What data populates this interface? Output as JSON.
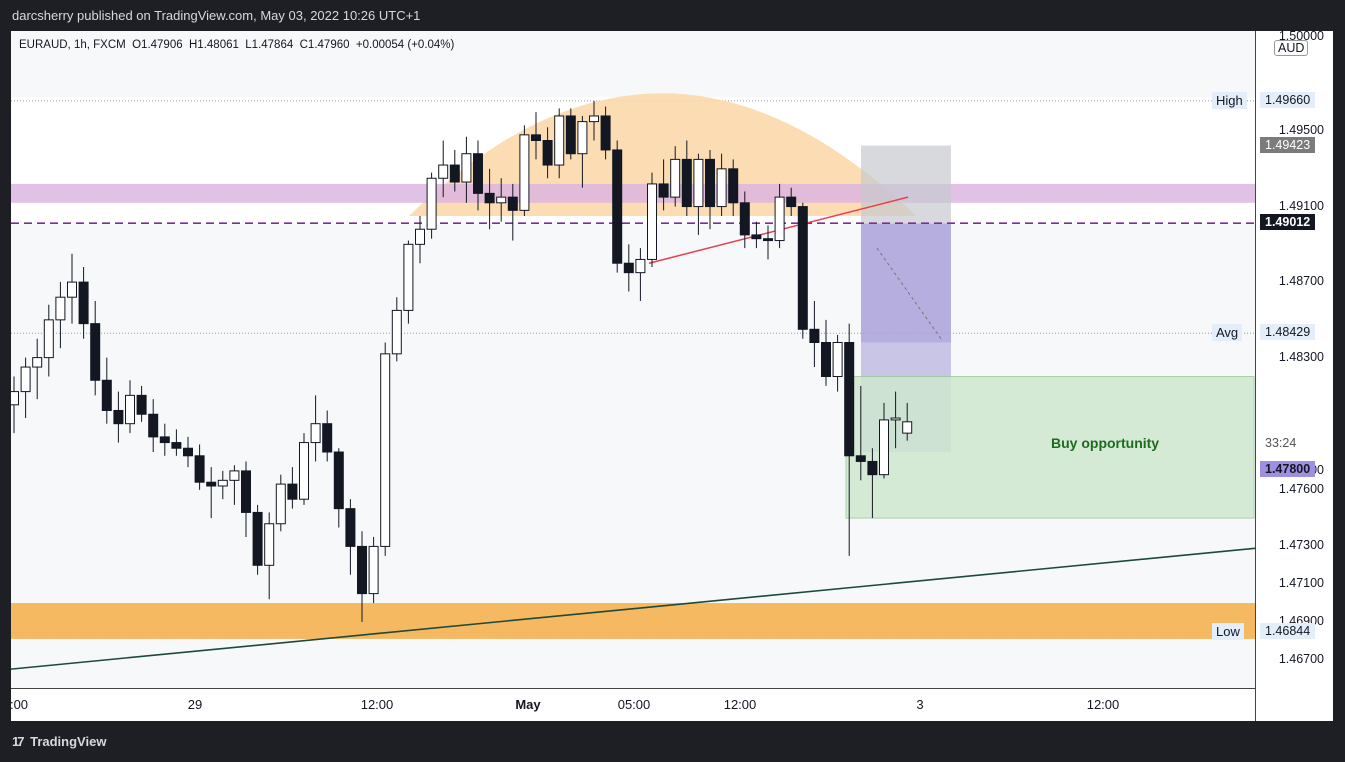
{
  "header": {
    "published_by": "darcsherry published on TradingView.com, May 03, 2022 10:26 UTC+1"
  },
  "symbol_info": {
    "text": "EURAUD, 1h, FXCM  O1.47906  H1.48061  L1.47864  C1.47960  +0.00054 (+0.04%)"
  },
  "price_scale": {
    "currency": "AUD",
    "ticks": [
      "1.50000",
      "1.49500",
      "1.49100",
      "1.48700",
      "1.48300",
      "1.47700",
      "1.47600",
      "1.47300",
      "1.47100",
      "1.46900",
      "1.46700"
    ],
    "labels": [
      {
        "name": "high",
        "side": "High",
        "value": "1.49660",
        "bg": "#e3eefa",
        "fg": "#131722"
      },
      {
        "name": "box-top",
        "side": "",
        "value": "1.49423",
        "bg": "#7b7b7b",
        "fg": "#ffffff"
      },
      {
        "name": "dashed-level",
        "side": "",
        "value": "1.49012",
        "bg": "#131722",
        "fg": "#ffffff"
      },
      {
        "name": "avg",
        "side": "Avg",
        "value": "1.48429",
        "bg": "#e3eefa",
        "fg": "#131722"
      },
      {
        "name": "countdown",
        "side": "",
        "value": "33:24",
        "bg": "#ffffff",
        "fg": "#555555"
      },
      {
        "name": "box-bottom",
        "side": "",
        "value": "1.47800",
        "bg": "#9f8fe0",
        "fg": "#131722"
      },
      {
        "name": "low",
        "side": "Low",
        "value": "1.46844",
        "bg": "#e3eefa",
        "fg": "#131722"
      }
    ]
  },
  "time_scale": {
    "ticks": [
      ":00",
      "29",
      "12:00",
      "May",
      "05:00",
      "12:00",
      "3",
      "12:00"
    ]
  },
  "annotations": {
    "buy_text": "Buy opportunity"
  },
  "footer": {
    "brand": "TradingView",
    "logo": "17"
  },
  "colors": {
    "resistance_band": "#d9b3e0",
    "support_band": "#f4b55a",
    "dome": "#fbd7a6",
    "target_box": "#cfe8cf",
    "position_box": "#a89bd9",
    "trendline": "#1e4a3a",
    "dashed_line": "#7b2d9b",
    "wedge_line": "#e8404a"
  },
  "chart_data": {
    "type": "candlestick",
    "symbol": "EURAUD",
    "interval": "1h",
    "ylim": [
      1.4655,
      1.5003
    ],
    "candles": [
      [
        1.4805,
        1.482,
        1.479,
        1.4812
      ],
      [
        1.4812,
        1.483,
        1.4798,
        1.4825
      ],
      [
        1.4825,
        1.484,
        1.4808,
        1.483
      ],
      [
        1.483,
        1.4858,
        1.482,
        1.485
      ],
      [
        1.485,
        1.487,
        1.4835,
        1.4862
      ],
      [
        1.4862,
        1.4885,
        1.4848,
        1.487
      ],
      [
        1.487,
        1.4878,
        1.484,
        1.4848
      ],
      [
        1.4848,
        1.486,
        1.481,
        1.4818
      ],
      [
        1.4818,
        1.483,
        1.4795,
        1.4802
      ],
      [
        1.4802,
        1.4812,
        1.4785,
        1.4795
      ],
      [
        1.4795,
        1.4818,
        1.479,
        1.481
      ],
      [
        1.481,
        1.4815,
        1.4796,
        1.48
      ],
      [
        1.48,
        1.4808,
        1.478,
        1.4788
      ],
      [
        1.4788,
        1.4795,
        1.4778,
        1.4785
      ],
      [
        1.4785,
        1.4792,
        1.4778,
        1.4782
      ],
      [
        1.4782,
        1.4788,
        1.4772,
        1.4778
      ],
      [
        1.4778,
        1.4784,
        1.476,
        1.4764
      ],
      [
        1.4764,
        1.4772,
        1.4745,
        1.4762
      ],
      [
        1.4762,
        1.477,
        1.4755,
        1.4765
      ],
      [
        1.4765,
        1.4773,
        1.4752,
        1.477
      ],
      [
        1.477,
        1.4775,
        1.4735,
        1.4748
      ],
      [
        1.4748,
        1.4752,
        1.4715,
        1.472
      ],
      [
        1.472,
        1.4748,
        1.4702,
        1.4742
      ],
      [
        1.4742,
        1.4768,
        1.4738,
        1.4763
      ],
      [
        1.4763,
        1.4772,
        1.475,
        1.4755
      ],
      [
        1.4755,
        1.479,
        1.4752,
        1.4785
      ],
      [
        1.4785,
        1.481,
        1.4775,
        1.4795
      ],
      [
        1.4795,
        1.4802,
        1.4775,
        1.478
      ],
      [
        1.478,
        1.4782,
        1.474,
        1.475
      ],
      [
        1.475,
        1.4755,
        1.4715,
        1.473
      ],
      [
        1.473,
        1.4738,
        1.469,
        1.4705
      ],
      [
        1.4705,
        1.4735,
        1.47,
        1.473
      ],
      [
        1.473,
        1.4838,
        1.4725,
        1.4832
      ],
      [
        1.4832,
        1.4862,
        1.4828,
        1.4855
      ],
      [
        1.4855,
        1.4892,
        1.4848,
        1.489
      ],
      [
        1.489,
        1.4905,
        1.488,
        1.4898
      ],
      [
        1.4898,
        1.4928,
        1.4893,
        1.4925
      ],
      [
        1.4925,
        1.4945,
        1.4915,
        1.4932
      ],
      [
        1.4932,
        1.494,
        1.4918,
        1.4923
      ],
      [
        1.4923,
        1.4947,
        1.4912,
        1.4938
      ],
      [
        1.4938,
        1.4945,
        1.4908,
        1.4917
      ],
      [
        1.4917,
        1.493,
        1.4898,
        1.4912
      ],
      [
        1.4912,
        1.4925,
        1.4902,
        1.4915
      ],
      [
        1.4915,
        1.4922,
        1.4892,
        1.4908
      ],
      [
        1.4908,
        1.4953,
        1.4905,
        1.4948
      ],
      [
        1.4948,
        1.496,
        1.4935,
        1.4945
      ],
      [
        1.4945,
        1.4952,
        1.4925,
        1.4932
      ],
      [
        1.4932,
        1.4962,
        1.4925,
        1.4958
      ],
      [
        1.4958,
        1.4962,
        1.4935,
        1.4938
      ],
      [
        1.4938,
        1.4958,
        1.492,
        1.4955
      ],
      [
        1.4955,
        1.4966,
        1.4945,
        1.4958
      ],
      [
        1.4958,
        1.4963,
        1.4935,
        1.494
      ],
      [
        1.494,
        1.4945,
        1.4875,
        1.488
      ],
      [
        1.488,
        1.489,
        1.4865,
        1.4875
      ],
      [
        1.4875,
        1.4888,
        1.486,
        1.4882
      ],
      [
        1.4882,
        1.4928,
        1.4878,
        1.4922
      ],
      [
        1.4922,
        1.4935,
        1.4908,
        1.4915
      ],
      [
        1.4915,
        1.4942,
        1.491,
        1.4935
      ],
      [
        1.4935,
        1.4945,
        1.4905,
        1.491
      ],
      [
        1.491,
        1.4938,
        1.4895,
        1.4935
      ],
      [
        1.4935,
        1.494,
        1.4898,
        1.491
      ],
      [
        1.491,
        1.4938,
        1.4905,
        1.493
      ],
      [
        1.493,
        1.4935,
        1.4905,
        1.4912
      ],
      [
        1.4912,
        1.4918,
        1.4888,
        1.4895
      ],
      [
        1.4895,
        1.4902,
        1.4888,
        1.4893
      ],
      [
        1.4893,
        1.49,
        1.4882,
        1.4892
      ],
      [
        1.4892,
        1.4922,
        1.4888,
        1.4915
      ],
      [
        1.4915,
        1.492,
        1.4905,
        1.491
      ],
      [
        1.491,
        1.4912,
        1.484,
        1.4845
      ],
      [
        1.4845,
        1.486,
        1.4825,
        1.4838
      ],
      [
        1.4838,
        1.485,
        1.4815,
        1.482
      ],
      [
        1.482,
        1.4842,
        1.4812,
        1.4838
      ],
      [
        1.4838,
        1.4848,
        1.4725,
        1.4778
      ],
      [
        1.4778,
        1.4815,
        1.4765,
        1.4775
      ],
      [
        1.4775,
        1.4782,
        1.4745,
        1.4768
      ],
      [
        1.4768,
        1.4806,
        1.4766,
        1.4797
      ],
      [
        1.4797,
        1.4812,
        1.4782,
        1.4798
      ],
      [
        1.479,
        1.4806,
        1.4786,
        1.4796
      ]
    ]
  }
}
